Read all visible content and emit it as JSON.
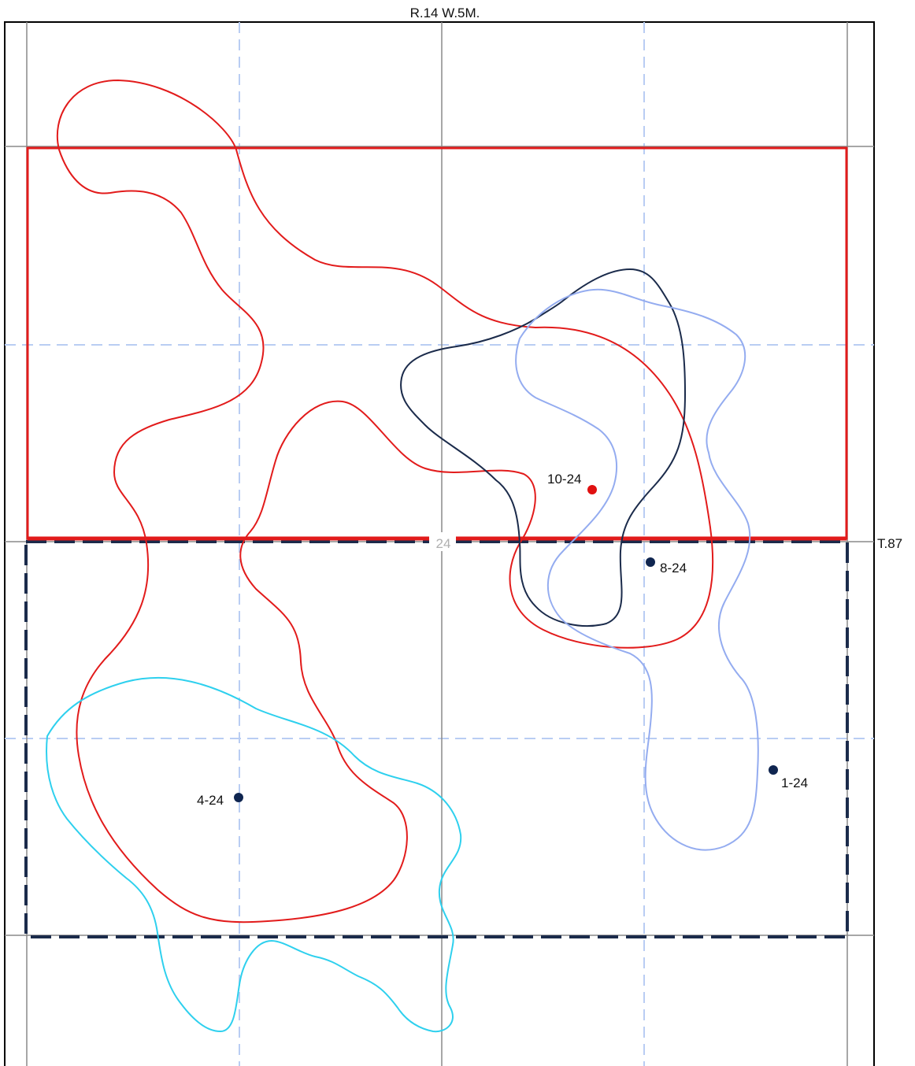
{
  "map": {
    "range_label": "R.14 W.5M.",
    "township_label": "T.87",
    "section_label": "24"
  },
  "wells": [
    {
      "id": "well-10-24",
      "label": "10-24",
      "status": "highlighted"
    },
    {
      "id": "well-8-24",
      "label": "8-24",
      "status": "normal"
    },
    {
      "id": "well-4-24",
      "label": "4-24",
      "status": "normal"
    },
    {
      "id": "well-1-24",
      "label": "1-24",
      "status": "normal"
    }
  ],
  "colors": {
    "section_grid": "#8a8a8a",
    "quarter_grid": "#b9cdf3",
    "red_contour": "#e21b1b",
    "navy_contour": "#1b2b4b",
    "periwinkle_contour": "#94acf0",
    "cyan_contour": "#2ed0ee",
    "navy_well": "#0f2550",
    "red_well": "#e01010",
    "section_number": "#b0b0b0"
  }
}
